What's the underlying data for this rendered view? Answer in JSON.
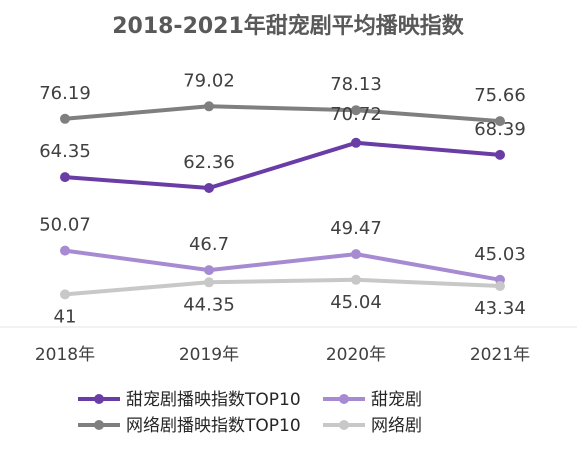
{
  "chart_data": {
    "type": "line",
    "title": "2018-2021年甜宠剧平均播映指数",
    "categories": [
      "2018年",
      "2019年",
      "2020年",
      "2021年"
    ],
    "ylim": [
      0,
      90
    ],
    "grid": false,
    "legend_position": "bottom",
    "series": [
      {
        "name": "甜宠剧播映指数TOP10",
        "color": "#6a3ca6",
        "values": [
          64.35,
          62.36,
          70.72,
          68.39
        ]
      },
      {
        "name": "甜宠剧",
        "color": "#a78bd2",
        "values": [
          50.07,
          46.7,
          49.47,
          45.03
        ]
      },
      {
        "name": "网络剧播映指数TOP10",
        "color": "#7f7f7f",
        "values": [
          76.19,
          79.02,
          78.13,
          75.66
        ]
      },
      {
        "name": "网络剧",
        "color": "#c8c8c8",
        "values": [
          41,
          44.35,
          45.04,
          43.34
        ]
      }
    ],
    "data_labels": {
      "甜宠剧播映指数TOP10": [
        "64.35",
        "62.36",
        "70.72",
        "68.39"
      ],
      "甜宠剧": [
        "50.07",
        "46.7",
        "49.47",
        "45.03"
      ],
      "网络剧播映指数TOP10": [
        "76.19",
        "79.02",
        "78.13",
        "75.66"
      ],
      "网络剧": [
        "41",
        "44.35",
        "45.04",
        "43.34"
      ]
    }
  }
}
